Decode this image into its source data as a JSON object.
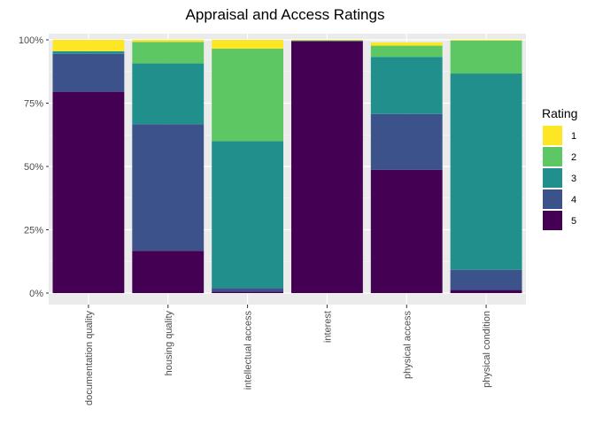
{
  "chart_data": {
    "type": "bar",
    "stacked": true,
    "normalized": true,
    "title": "Appraisal and Access Ratings",
    "xlabel": "",
    "ylabel": "",
    "categories": [
      "documentation quality",
      "housing quality",
      "intellectual access",
      "interest",
      "physical access",
      "physical condition"
    ],
    "y_ticks": [
      "0%",
      "25%",
      "50%",
      "75%",
      "100%"
    ],
    "ylim": [
      0,
      1
    ],
    "grid": true,
    "legend": {
      "title": "Rating",
      "position": "right"
    },
    "series": [
      {
        "name": "1",
        "color": "#FDE725",
        "values": [
          0.045,
          0.008,
          0.035,
          0.002,
          0.013,
          0.003
        ]
      },
      {
        "name": "2",
        "color": "#5DC863",
        "values": [
          0.0,
          0.085,
          0.365,
          0.003,
          0.045,
          0.13
        ]
      },
      {
        "name": "3",
        "color": "#21908C",
        "values": [
          0.01,
          0.24,
          0.58,
          0.0,
          0.225,
          0.775
        ]
      },
      {
        "name": "4",
        "color": "#3B528B",
        "values": [
          0.15,
          0.5,
          0.015,
          0.0,
          0.22,
          0.08
        ]
      },
      {
        "name": "5",
        "color": "#440154",
        "values": [
          0.795,
          0.167,
          0.005,
          0.995,
          0.487,
          0.012
        ]
      }
    ]
  }
}
